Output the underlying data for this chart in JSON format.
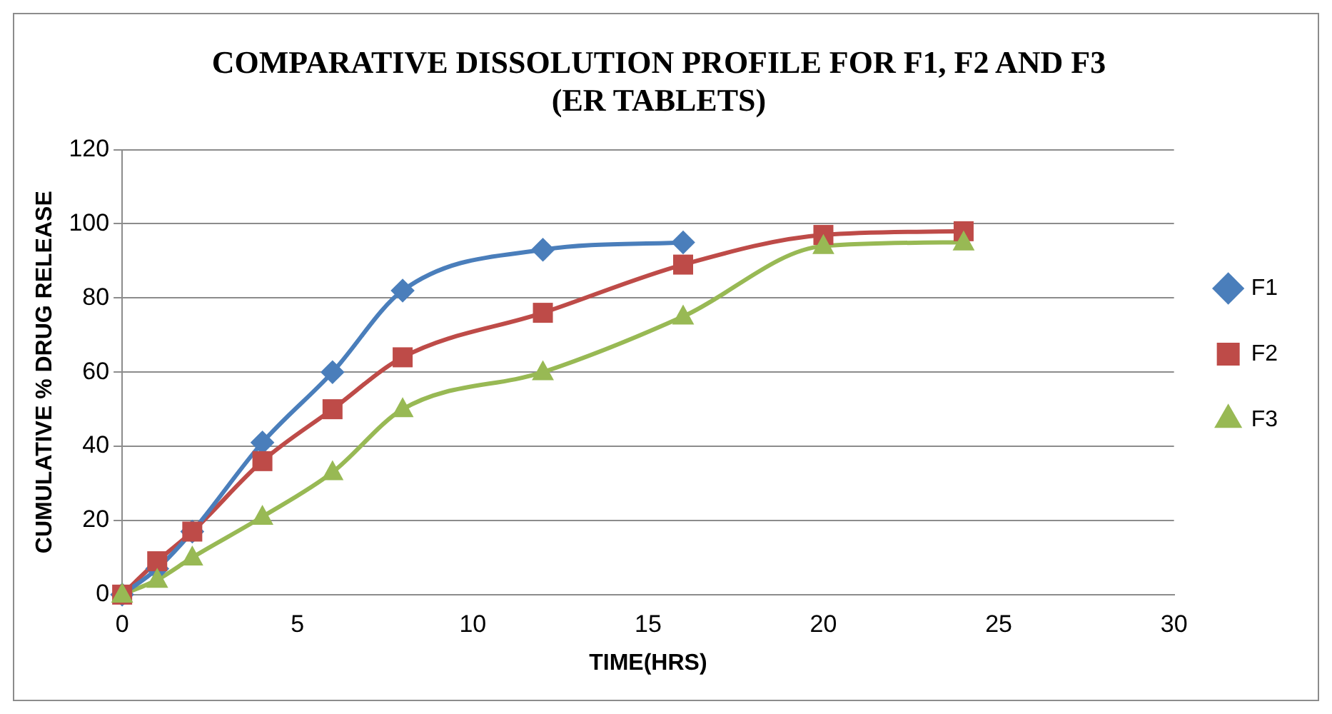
{
  "chart_data": {
    "type": "line",
    "title": "COMPARATIVE DISSOLUTION PROFILE FOR F1, F2 AND F3 (ER TABLETS)",
    "xlabel": "TIME(HRS)",
    "ylabel": "CUMULATIVE % DRUG RELEASE",
    "xlim": [
      0,
      30
    ],
    "xticks": [
      0,
      5,
      10,
      15,
      20,
      25,
      30
    ],
    "ylim": [
      0,
      120
    ],
    "yticks": [
      0,
      20,
      40,
      60,
      80,
      100,
      120
    ],
    "grid": "y",
    "legend": "right",
    "series": [
      {
        "name": "F1",
        "color": "#4a7ebb",
        "marker": "diamond",
        "x": [
          0,
          1,
          2,
          4,
          6,
          8,
          12,
          16
        ],
        "values": [
          0,
          7,
          17,
          41,
          60,
          82,
          93,
          95
        ]
      },
      {
        "name": "F2",
        "color": "#be4b48",
        "marker": "square",
        "x": [
          0,
          1,
          2,
          4,
          6,
          8,
          12,
          16,
          20,
          24
        ],
        "values": [
          0,
          9,
          17,
          36,
          50,
          64,
          76,
          89,
          97,
          98
        ]
      },
      {
        "name": "F3",
        "color": "#98b954",
        "marker": "triangle",
        "x": [
          0,
          1,
          2,
          4,
          6,
          8,
          12,
          16,
          20,
          24
        ],
        "values": [
          0,
          4,
          10,
          21,
          33,
          50,
          60,
          75,
          94,
          95
        ]
      }
    ]
  }
}
